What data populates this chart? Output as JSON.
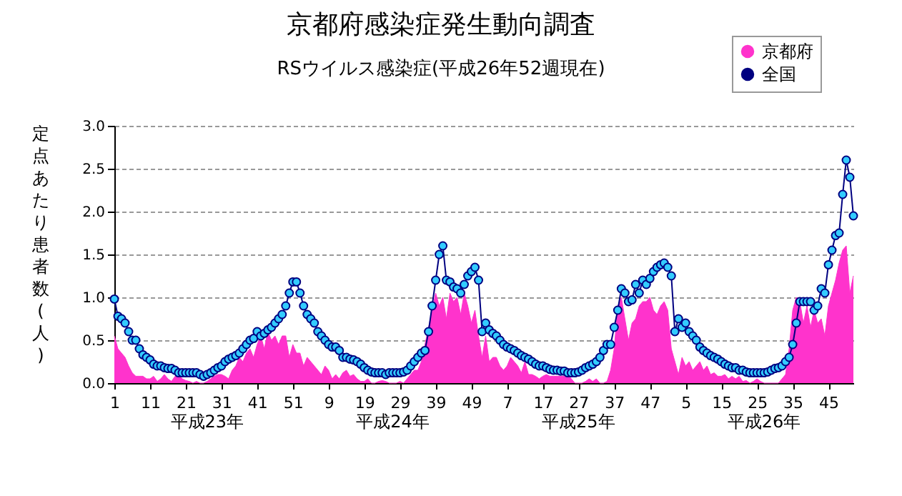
{
  "chart_data": {
    "type": "line",
    "title": "京都府感染症発生動向調査",
    "subtitle": "RSウイルス感染症(平成26年52週現在)",
    "ylabel": "定点あたり患者数(人)",
    "categories": [
      "1",
      null,
      null,
      null,
      null,
      null,
      null,
      null,
      null,
      null,
      "11",
      null,
      null,
      null,
      null,
      null,
      null,
      null,
      null,
      null,
      "21",
      null,
      null,
      null,
      null,
      null,
      null,
      null,
      null,
      null,
      "31",
      null,
      null,
      null,
      null,
      null,
      null,
      null,
      null,
      null,
      "41",
      null,
      null,
      null,
      null,
      null,
      null,
      null,
      null,
      null,
      "51",
      null,
      null,
      null,
      null,
      null,
      null,
      null,
      null,
      null,
      "9",
      null,
      null,
      null,
      null,
      null,
      null,
      null,
      null,
      null,
      "19",
      null,
      null,
      null,
      null,
      null,
      null,
      null,
      null,
      null,
      "29",
      null,
      null,
      null,
      null,
      null,
      null,
      null,
      null,
      null,
      "39",
      null,
      null,
      null,
      null,
      null,
      null,
      null,
      null,
      null,
      "49",
      null,
      null,
      null,
      null,
      null,
      null,
      null,
      null,
      null,
      "7",
      null,
      null,
      null,
      null,
      null,
      null,
      null,
      null,
      null,
      "17",
      null,
      null,
      null,
      null,
      null,
      null,
      null,
      null,
      null,
      "27",
      null,
      null,
      null,
      null,
      null,
      null,
      null,
      null,
      null,
      "37",
      null,
      null,
      null,
      null,
      null,
      null,
      null,
      null,
      null,
      "47",
      null,
      null,
      null,
      null,
      null,
      null,
      null,
      null,
      null,
      "5",
      null,
      null,
      null,
      null,
      null,
      null,
      null,
      null,
      null,
      "15",
      null,
      null,
      null,
      null,
      null,
      null,
      null,
      null,
      null,
      "25",
      null,
      null,
      null,
      null,
      null,
      null,
      null,
      null,
      null,
      "35",
      null,
      null,
      null,
      null,
      null,
      null,
      null,
      null,
      null,
      "45",
      null,
      null,
      null,
      null,
      null,
      null,
      null
    ],
    "series": [
      {
        "name": "京都府",
        "type": "area",
        "color": "#ff33cc",
        "values": [
          0.55,
          0.4,
          0.35,
          0.3,
          0.2,
          0.12,
          0.08,
          0.08,
          0.08,
          0.05,
          0.05,
          0.08,
          0.02,
          0.05,
          0.1,
          0.05,
          0.02,
          0.08,
          0.1,
          0.05,
          0.03,
          0.02,
          0,
          0.02,
          0,
          0,
          0.02,
          0.05,
          0.08,
          0.1,
          0.1,
          0.08,
          0.05,
          0.15,
          0.2,
          0.3,
          0.25,
          0.35,
          0.4,
          0.3,
          0.45,
          0.55,
          0.4,
          0.6,
          0.5,
          0.55,
          0.45,
          0.55,
          0.55,
          0.3,
          0.45,
          0.35,
          0.35,
          0.2,
          0.3,
          0.25,
          0.2,
          0.15,
          0.1,
          0.2,
          0.15,
          0.05,
          0.1,
          0.05,
          0.12,
          0.15,
          0.08,
          0.1,
          0.05,
          0.02,
          0.02,
          0.05,
          0,
          0,
          0.02,
          0.03,
          0.02,
          0,
          0,
          0,
          0.02,
          0,
          0.05,
          0.1,
          0.15,
          0.15,
          0.25,
          0.45,
          0.65,
          0.85,
          1.05,
          0.9,
          1.0,
          0.75,
          1.05,
          0.95,
          1.0,
          0.8,
          1.05,
          0.9,
          0.7,
          0.85,
          0.55,
          0.3,
          0.55,
          0.25,
          0.3,
          0.3,
          0.2,
          0.15,
          0.2,
          0.3,
          0.25,
          0.2,
          0.12,
          0.25,
          0.1,
          0.1,
          0.08,
          0.05,
          0.08,
          0.1,
          0.08,
          0.08,
          0.08,
          0.08,
          0.08,
          0.1,
          0.05,
          0,
          0,
          0,
          0.02,
          0.05,
          0.02,
          0.05,
          0,
          0,
          0.02,
          0.15,
          0.4,
          0.9,
          1.0,
          0.75,
          0.5,
          0.7,
          0.75,
          0.9,
          0.95,
          0.95,
          1.0,
          0.85,
          0.8,
          0.9,
          0.95,
          0.85,
          0.4,
          0.25,
          0.1,
          0.3,
          0.2,
          0.25,
          0.15,
          0.2,
          0.25,
          0.15,
          0.2,
          0.1,
          0.12,
          0.08,
          0.08,
          0.1,
          0.05,
          0.08,
          0.05,
          0.08,
          0.02,
          0.03,
          0,
          0.02,
          0.05,
          0.02,
          0,
          0,
          0,
          0,
          0,
          0.05,
          0.1,
          0.4,
          0.85,
          1.0,
          0.95,
          0.7,
          0.9,
          0.65,
          0.85,
          0.7,
          0.75,
          0.55,
          0.9,
          1.05,
          1.2,
          1.4,
          1.55,
          1.6,
          1.05,
          1.25
        ]
      },
      {
        "name": "全国",
        "color": "#000080",
        "marker": "circle",
        "values": [
          0.98,
          0.78,
          0.75,
          0.7,
          0.6,
          0.5,
          0.5,
          0.4,
          0.33,
          0.3,
          0.27,
          0.22,
          0.2,
          0.2,
          0.18,
          0.17,
          0.17,
          0.15,
          0.12,
          0.12,
          0.12,
          0.12,
          0.12,
          0.12,
          0.1,
          0.08,
          0.1,
          0.12,
          0.15,
          0.18,
          0.2,
          0.25,
          0.28,
          0.3,
          0.32,
          0.35,
          0.4,
          0.45,
          0.5,
          0.52,
          0.6,
          0.55,
          0.58,
          0.62,
          0.65,
          0.7,
          0.75,
          0.8,
          0.9,
          1.05,
          1.18,
          1.18,
          1.05,
          0.9,
          0.8,
          0.75,
          0.7,
          0.6,
          0.55,
          0.5,
          0.45,
          0.42,
          0.42,
          0.38,
          0.3,
          0.3,
          0.28,
          0.27,
          0.25,
          0.22,
          0.18,
          0.15,
          0.13,
          0.12,
          0.12,
          0.12,
          0.1,
          0.12,
          0.12,
          0.12,
          0.12,
          0.13,
          0.15,
          0.2,
          0.25,
          0.3,
          0.35,
          0.38,
          0.6,
          0.9,
          1.2,
          1.5,
          1.6,
          1.2,
          1.18,
          1.12,
          1.1,
          1.05,
          1.15,
          1.25,
          1.3,
          1.35,
          1.2,
          0.6,
          0.7,
          0.62,
          0.58,
          0.55,
          0.5,
          0.45,
          0.42,
          0.4,
          0.38,
          0.35,
          0.32,
          0.3,
          0.28,
          0.25,
          0.22,
          0.2,
          0.2,
          0.18,
          0.16,
          0.15,
          0.15,
          0.14,
          0.14,
          0.12,
          0.12,
          0.12,
          0.13,
          0.15,
          0.18,
          0.2,
          0.22,
          0.25,
          0.3,
          0.38,
          0.45,
          0.45,
          0.65,
          0.85,
          1.1,
          1.05,
          0.95,
          0.97,
          1.15,
          1.05,
          1.2,
          1.15,
          1.22,
          1.3,
          1.35,
          1.38,
          1.4,
          1.35,
          1.25,
          0.6,
          0.75,
          0.65,
          0.7,
          0.6,
          0.55,
          0.5,
          0.42,
          0.38,
          0.35,
          0.32,
          0.3,
          0.28,
          0.25,
          0.22,
          0.2,
          0.18,
          0.18,
          0.15,
          0.15,
          0.13,
          0.12,
          0.12,
          0.12,
          0.12,
          0.12,
          0.13,
          0.15,
          0.17,
          0.18,
          0.2,
          0.25,
          0.3,
          0.45,
          0.7,
          0.95,
          0.95,
          0.95,
          0.95,
          0.85,
          0.9,
          1.1,
          1.05,
          1.38,
          1.55,
          1.72,
          1.75,
          2.2,
          2.6,
          2.4,
          1.95
        ]
      }
    ],
    "ylim": [
      0,
      3
    ],
    "yticks": [
      {
        "value": 0,
        "label": "0.0"
      },
      {
        "value": 0.5,
        "label": "0.5"
      },
      {
        "value": 1,
        "label": "1.0"
      },
      {
        "value": 1.5,
        "label": "1.5"
      },
      {
        "value": 2,
        "label": "2.0"
      },
      {
        "value": 2.5,
        "label": "2.5"
      },
      {
        "value": 3,
        "label": "3.0"
      }
    ],
    "grid": "y",
    "legend": "top right",
    "annotations": [
      "平成23年",
      "平成24年",
      "平成25年",
      "平成26年"
    ]
  }
}
